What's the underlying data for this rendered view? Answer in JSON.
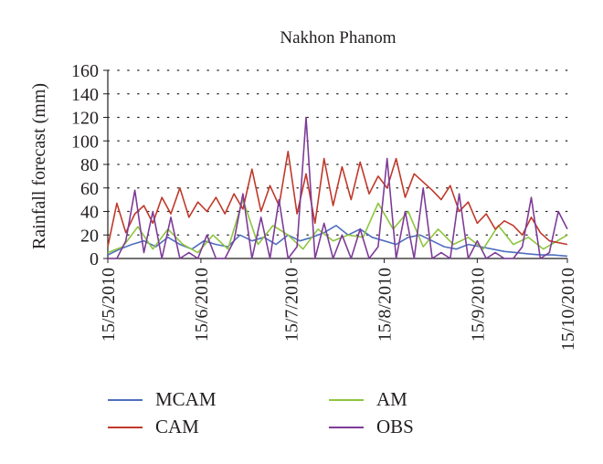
{
  "chart_data": {
    "type": "line",
    "title": "Nakhon Phanom",
    "xlabel": "",
    "ylabel": "Rainfall forecast (mm)",
    "ylim": [
      0,
      160
    ],
    "yticks": [
      "0",
      "20",
      "40",
      "60",
      "80",
      "100",
      "120",
      "140",
      "160"
    ],
    "xrange": [
      "2010-05-15",
      "2010-10-15"
    ],
    "xticks": [
      "15/5/2010",
      "15/6/2010",
      "15/7/2010",
      "15/8/2010",
      "15/9/2010",
      "15/10/2010"
    ],
    "grid": "horizontal dotted",
    "legend_position": "bottom",
    "series": [
      {
        "name": "MCAM",
        "color": "#4f6fbd",
        "x": [
          "2010-05-15",
          "2010-05-19",
          "2010-05-23",
          "2010-05-27",
          "2010-05-31",
          "2010-06-04",
          "2010-06-08",
          "2010-06-12",
          "2010-06-16",
          "2010-06-20",
          "2010-06-24",
          "2010-06-28",
          "2010-07-02",
          "2010-07-06",
          "2010-07-10",
          "2010-07-14",
          "2010-07-18",
          "2010-07-22",
          "2010-07-26",
          "2010-07-30",
          "2010-08-03",
          "2010-08-07",
          "2010-08-11",
          "2010-08-15",
          "2010-08-19",
          "2010-08-23",
          "2010-08-27",
          "2010-08-31",
          "2010-09-04",
          "2010-09-08",
          "2010-09-12",
          "2010-09-16",
          "2010-09-20",
          "2010-09-24",
          "2010-09-28",
          "2010-10-02",
          "2010-10-06",
          "2010-10-10",
          "2010-10-15"
        ],
        "y": [
          3,
          8,
          12,
          15,
          10,
          18,
          12,
          8,
          15,
          12,
          10,
          20,
          15,
          18,
          12,
          20,
          15,
          18,
          22,
          28,
          20,
          25,
          18,
          15,
          12,
          18,
          20,
          15,
          10,
          8,
          12,
          10,
          8,
          6,
          5,
          4,
          3,
          3,
          2
        ]
      },
      {
        "name": "CAM",
        "color": "#c0392b",
        "x": [
          "2010-05-15",
          "2010-05-18",
          "2010-05-21",
          "2010-05-24",
          "2010-05-27",
          "2010-05-30",
          "2010-06-02",
          "2010-06-05",
          "2010-06-08",
          "2010-06-11",
          "2010-06-14",
          "2010-06-17",
          "2010-06-20",
          "2010-06-23",
          "2010-06-26",
          "2010-06-29",
          "2010-07-02",
          "2010-07-05",
          "2010-07-08",
          "2010-07-11",
          "2010-07-14",
          "2010-07-17",
          "2010-07-20",
          "2010-07-23",
          "2010-07-26",
          "2010-07-29",
          "2010-08-01",
          "2010-08-04",
          "2010-08-07",
          "2010-08-10",
          "2010-08-13",
          "2010-08-16",
          "2010-08-19",
          "2010-08-22",
          "2010-08-25",
          "2010-08-28",
          "2010-08-31",
          "2010-09-03",
          "2010-09-06",
          "2010-09-09",
          "2010-09-12",
          "2010-09-15",
          "2010-09-18",
          "2010-09-21",
          "2010-09-24",
          "2010-09-27",
          "2010-09-30",
          "2010-10-03",
          "2010-10-06",
          "2010-10-09",
          "2010-10-15"
        ],
        "y": [
          10,
          47,
          22,
          38,
          45,
          30,
          52,
          38,
          60,
          35,
          48,
          40,
          52,
          38,
          55,
          42,
          76,
          40,
          62,
          45,
          91,
          38,
          72,
          30,
          85,
          45,
          78,
          50,
          82,
          55,
          70,
          60,
          85,
          52,
          72,
          65,
          58,
          50,
          62,
          40,
          48,
          30,
          38,
          25,
          32,
          28,
          20,
          35,
          22,
          15,
          12
        ]
      },
      {
        "name": "AM",
        "color": "#8dc63f",
        "x": [
          "2010-05-15",
          "2010-05-20",
          "2010-05-25",
          "2010-05-30",
          "2010-06-04",
          "2010-06-09",
          "2010-06-14",
          "2010-06-19",
          "2010-06-24",
          "2010-06-29",
          "2010-07-04",
          "2010-07-09",
          "2010-07-14",
          "2010-07-19",
          "2010-07-24",
          "2010-07-29",
          "2010-08-03",
          "2010-08-08",
          "2010-08-13",
          "2010-08-18",
          "2010-08-23",
          "2010-08-28",
          "2010-09-02",
          "2010-09-07",
          "2010-09-12",
          "2010-09-17",
          "2010-09-22",
          "2010-09-27",
          "2010-10-02",
          "2010-10-07",
          "2010-10-15"
        ],
        "y": [
          5,
          10,
          27,
          8,
          25,
          12,
          5,
          20,
          8,
          50,
          12,
          28,
          20,
          8,
          25,
          15,
          20,
          18,
          47,
          25,
          40,
          10,
          25,
          12,
          18,
          8,
          28,
          12,
          18,
          8,
          20
        ]
      },
      {
        "name": "OBS",
        "color": "#7d3c98",
        "x": [
          "2010-05-15",
          "2010-05-18",
          "2010-05-21",
          "2010-05-24",
          "2010-05-27",
          "2010-05-30",
          "2010-06-02",
          "2010-06-05",
          "2010-06-08",
          "2010-06-11",
          "2010-06-14",
          "2010-06-17",
          "2010-06-20",
          "2010-06-23",
          "2010-06-26",
          "2010-06-29",
          "2010-07-02",
          "2010-07-05",
          "2010-07-08",
          "2010-07-11",
          "2010-07-14",
          "2010-07-17",
          "2010-07-20",
          "2010-07-23",
          "2010-07-26",
          "2010-07-29",
          "2010-08-01",
          "2010-08-04",
          "2010-08-07",
          "2010-08-10",
          "2010-08-13",
          "2010-08-16",
          "2010-08-19",
          "2010-08-22",
          "2010-08-25",
          "2010-08-28",
          "2010-08-31",
          "2010-09-03",
          "2010-09-06",
          "2010-09-09",
          "2010-09-12",
          "2010-09-15",
          "2010-09-18",
          "2010-09-21",
          "2010-09-24",
          "2010-09-27",
          "2010-09-30",
          "2010-10-03",
          "2010-10-06",
          "2010-10-09",
          "2010-10-12",
          "2010-10-15"
        ],
        "y": [
          0,
          0,
          15,
          58,
          5,
          40,
          0,
          35,
          0,
          5,
          0,
          20,
          0,
          0,
          15,
          55,
          0,
          35,
          0,
          50,
          0,
          10,
          120,
          0,
          30,
          0,
          20,
          0,
          25,
          0,
          10,
          85,
          0,
          40,
          0,
          60,
          0,
          5,
          0,
          55,
          0,
          15,
          0,
          5,
          0,
          0,
          10,
          52,
          0,
          5,
          40,
          25
        ]
      }
    ]
  }
}
